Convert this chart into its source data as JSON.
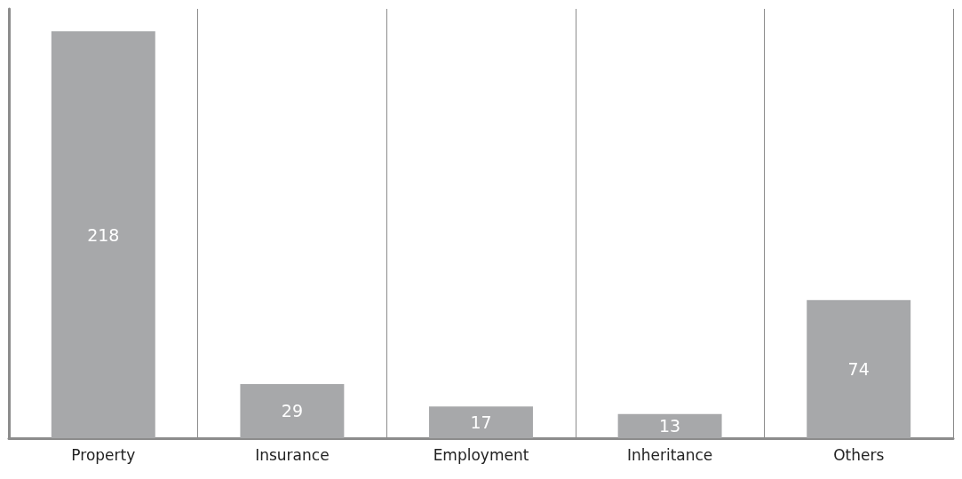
{
  "chart_data": {
    "type": "bar",
    "categories": [
      "Property",
      "Insurance",
      "Employment",
      "Inheritance",
      "Others"
    ],
    "values": [
      218,
      29,
      17,
      13,
      74
    ],
    "color": "#a7a8aa",
    "data_labels": true,
    "grid": "x"
  }
}
